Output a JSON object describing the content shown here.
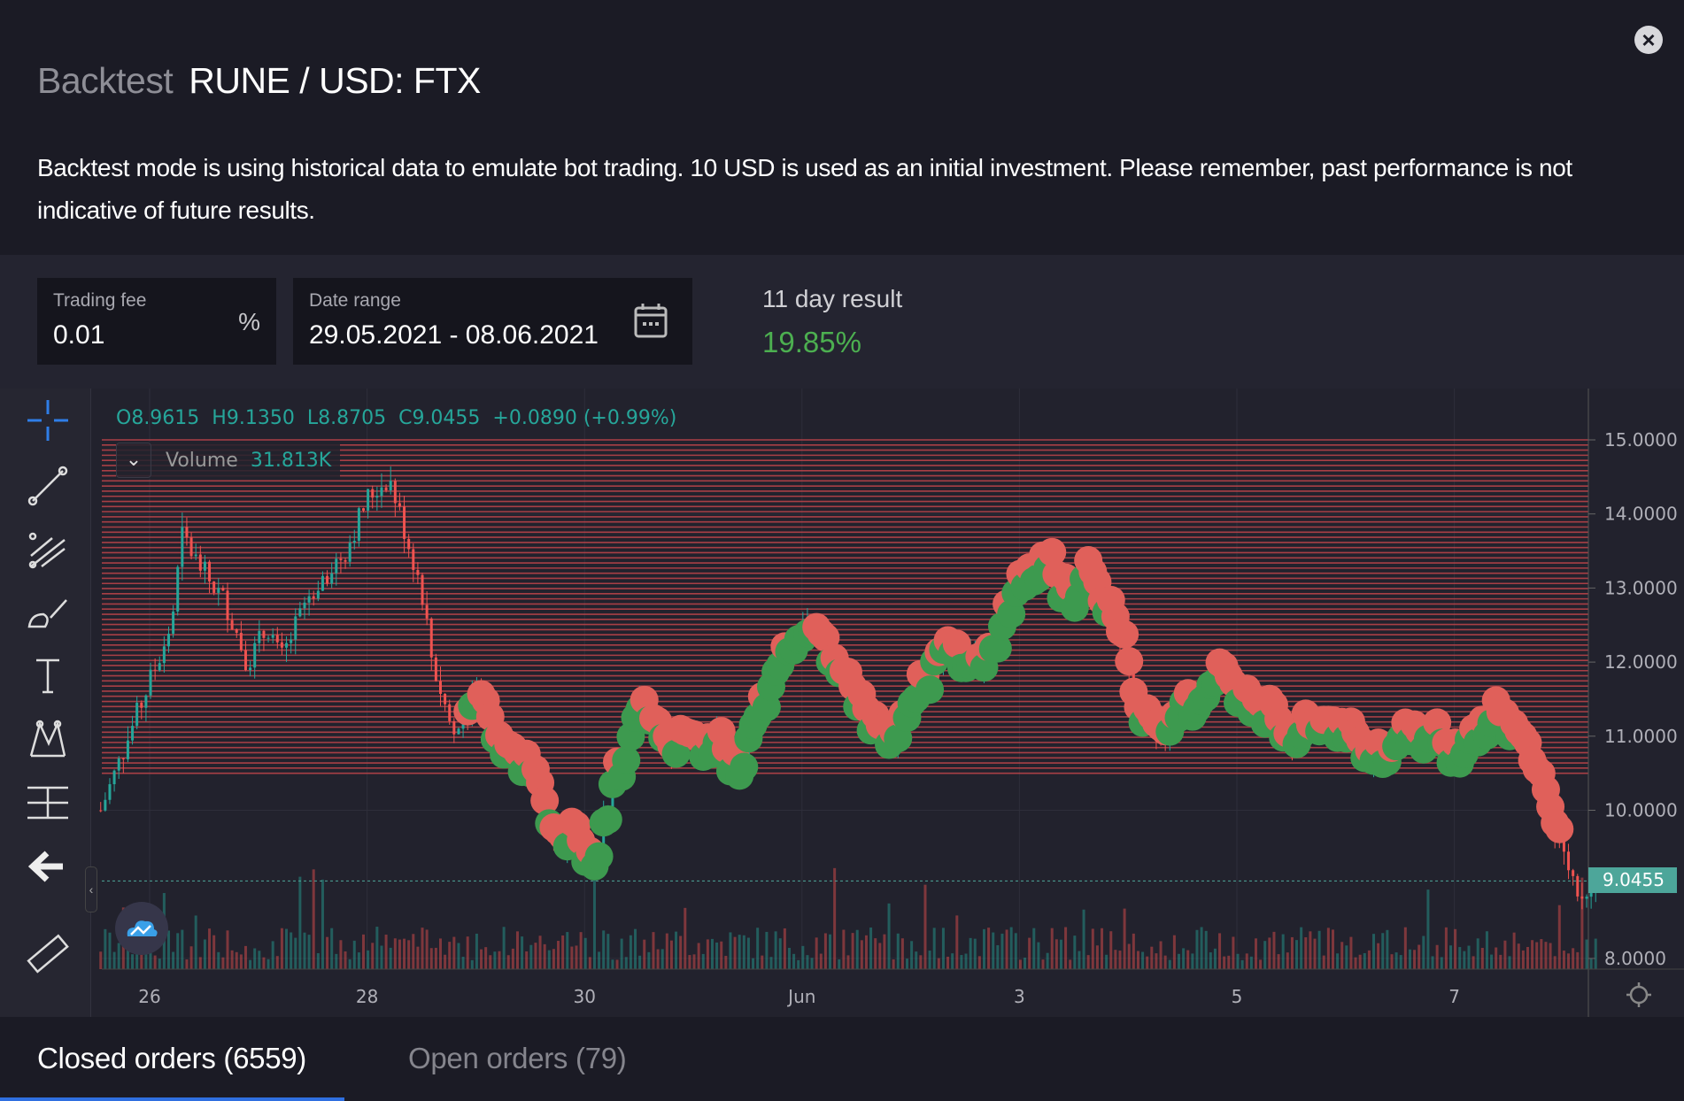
{
  "header": {
    "title_prefix": "Backtest",
    "title": "RUNE / USD: FTX",
    "close_icon": "close-icon"
  },
  "description": "Backtest mode is using historical data to emulate bot trading. 10 USD is used as an initial investment. Please remember, past performance is not indicative of future results.",
  "params": {
    "trading_fee": {
      "label": "Trading fee",
      "value": "0.01",
      "suffix": "%"
    },
    "date_range": {
      "label": "Date range",
      "value": "29.05.2021 - 08.06.2021",
      "icon": "calendar-icon"
    },
    "result": {
      "label": "11 day result",
      "value": "19.85%",
      "color": "#4caf50"
    }
  },
  "chart": {
    "ohlc": {
      "o": "O8.9615",
      "h": "H9.1350",
      "l": "L8.8705",
      "c": "C9.0455",
      "chg": "+0.0890 (+0.99%)"
    },
    "volume": {
      "label": "Volume",
      "value": "31.813K"
    },
    "current_price": "9.0455",
    "colors": {
      "up": "#26a69a",
      "down": "#ef5350",
      "buy": "#3d9a4f",
      "sell": "#e0605a",
      "grid_level": "#c0454a"
    },
    "tools": [
      "crosshair-icon",
      "trendline-icon",
      "pitchfork-icon",
      "brush-icon",
      "text-icon",
      "pattern-icon",
      "measure-icon",
      "back-arrow-icon",
      "ruler-icon"
    ]
  },
  "chart_data": {
    "type": "candlestick",
    "yticks": [
      "15.0000",
      "14.0000",
      "13.0000",
      "12.0000",
      "11.0000",
      "10.0000",
      "8.0000"
    ],
    "ytick_values": [
      15,
      14,
      13,
      12,
      11,
      10,
      8
    ],
    "ylim": [
      8,
      15.6
    ],
    "xticks": [
      "26",
      "28",
      "30",
      "Jun",
      "3",
      "5",
      "7"
    ],
    "xtick_days": [
      0,
      2,
      4,
      6,
      8,
      10,
      12
    ],
    "xlim_days": [
      -0.45,
      13.3
    ],
    "grid_levels": {
      "from": 10.5,
      "to": 15,
      "count": 66
    },
    "bot_start_day": 2.9,
    "price_path": [
      [
        -0.45,
        10.0
      ],
      [
        0.2,
        12.5
      ],
      [
        0.3,
        13.7
      ],
      [
        0.5,
        13.2
      ],
      [
        0.7,
        12.8
      ],
      [
        0.9,
        12.0
      ],
      [
        1.1,
        12.5
      ],
      [
        1.2,
        12.0
      ],
      [
        1.5,
        13.0
      ],
      [
        1.8,
        13.5
      ],
      [
        2.0,
        14.2
      ],
      [
        2.2,
        14.5
      ],
      [
        2.3,
        14.0
      ],
      [
        2.5,
        13.0
      ],
      [
        2.6,
        12.0
      ],
      [
        2.8,
        11.0
      ],
      [
        3.0,
        11.5
      ],
      [
        3.2,
        11.0
      ],
      [
        3.5,
        10.6
      ],
      [
        3.7,
        9.8
      ],
      [
        3.9,
        9.5
      ],
      [
        4.1,
        9.4
      ],
      [
        4.2,
        10.1
      ],
      [
        4.3,
        10.6
      ],
      [
        4.5,
        11.5
      ],
      [
        4.8,
        10.8
      ],
      [
        5.2,
        11.0
      ],
      [
        5.4,
        10.5
      ],
      [
        5.7,
        11.8
      ],
      [
        6.0,
        12.6
      ],
      [
        6.2,
        12.2
      ],
      [
        6.5,
        11.5
      ],
      [
        6.8,
        10.9
      ],
      [
        7.0,
        11.5
      ],
      [
        7.3,
        12.2
      ],
      [
        7.7,
        12.0
      ],
      [
        8.0,
        13.1
      ],
      [
        8.2,
        13.5
      ],
      [
        8.4,
        12.8
      ],
      [
        8.6,
        13.2
      ],
      [
        8.9,
        12.5
      ],
      [
        9.1,
        11.3
      ],
      [
        9.3,
        10.8
      ],
      [
        9.5,
        11.5
      ],
      [
        9.9,
        11.8
      ],
      [
        10.2,
        11.3
      ],
      [
        10.5,
        11.0
      ],
      [
        11.0,
        11.2
      ],
      [
        11.3,
        10.6
      ],
      [
        11.5,
        11.0
      ],
      [
        11.8,
        11.1
      ],
      [
        12.0,
        10.8
      ],
      [
        12.3,
        11.2
      ],
      [
        12.6,
        11.0
      ],
      [
        12.8,
        10.3
      ],
      [
        13.0,
        9.4
      ],
      [
        13.15,
        8.9
      ],
      [
        13.25,
        9.05
      ]
    ]
  },
  "tabs": [
    {
      "label": "Closed orders (6559)"
    },
    {
      "label": "Open orders (79)"
    }
  ]
}
